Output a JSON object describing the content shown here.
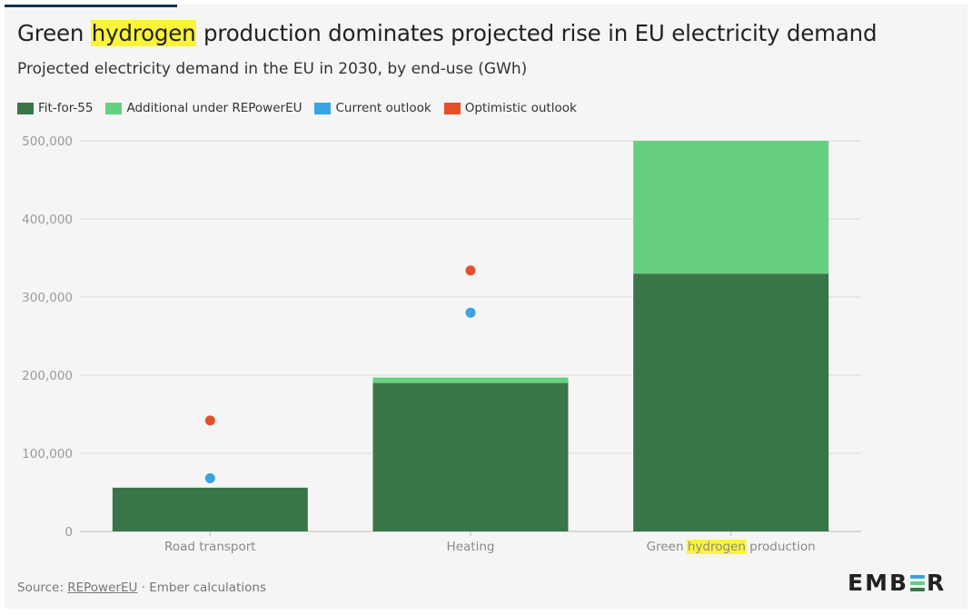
{
  "title": {
    "before": "Green ",
    "highlight": "hydrogen",
    "after": " production dominates projected rise in EU electricity demand"
  },
  "subtitle": "Projected electricity demand in the EU in 2030, by end-use (GWh)",
  "colors": {
    "fit_for_55": "#3a7548",
    "additional": "#66d07e",
    "current_outlook": "#3aa3e3",
    "optimistic_outlook": "#e4502b",
    "highlight": "#fbf43a",
    "grid": "#dcdcdc"
  },
  "legend": [
    {
      "label": "Fit-for-55",
      "color": "#3a7548",
      "shape": "square"
    },
    {
      "label": "Additional under REPowerEU",
      "color": "#66d07e",
      "shape": "square"
    },
    {
      "label": "Current outlook",
      "color": "#3aa3e3",
      "shape": "square"
    },
    {
      "label": "Optimistic outlook",
      "color": "#e4502b",
      "shape": "square"
    }
  ],
  "chart_data": {
    "type": "bar",
    "stacked": true,
    "categories": [
      "Road transport",
      "Heating",
      "Green hydrogen production"
    ],
    "category_highlight": {
      "index": 2,
      "word": "hydrogen"
    },
    "series": [
      {
        "name": "Fit-for-55",
        "kind": "bar",
        "values": [
          56000,
          190000,
          330000
        ]
      },
      {
        "name": "Additional under REPowerEU",
        "kind": "bar",
        "values": [
          0,
          7000,
          170000
        ]
      },
      {
        "name": "Current outlook",
        "kind": "point",
        "values": [
          68000,
          280000,
          null
        ]
      },
      {
        "name": "Optimistic outlook",
        "kind": "point",
        "values": [
          142000,
          334000,
          null
        ]
      }
    ],
    "ylim": [
      0,
      500000
    ],
    "yticks": [
      0,
      100000,
      200000,
      300000,
      400000,
      500000
    ],
    "ytick_labels": [
      "0",
      "100,000",
      "200,000",
      "300,000",
      "400,000",
      "500,000"
    ],
    "grid": true,
    "legend_position": "top-left"
  },
  "footer": {
    "source_prefix": "Source: ",
    "source_link": "REPowerEU",
    "source_suffix": " · Ember calculations"
  },
  "logo": {
    "text_left": "EMB",
    "text_right": "R"
  }
}
